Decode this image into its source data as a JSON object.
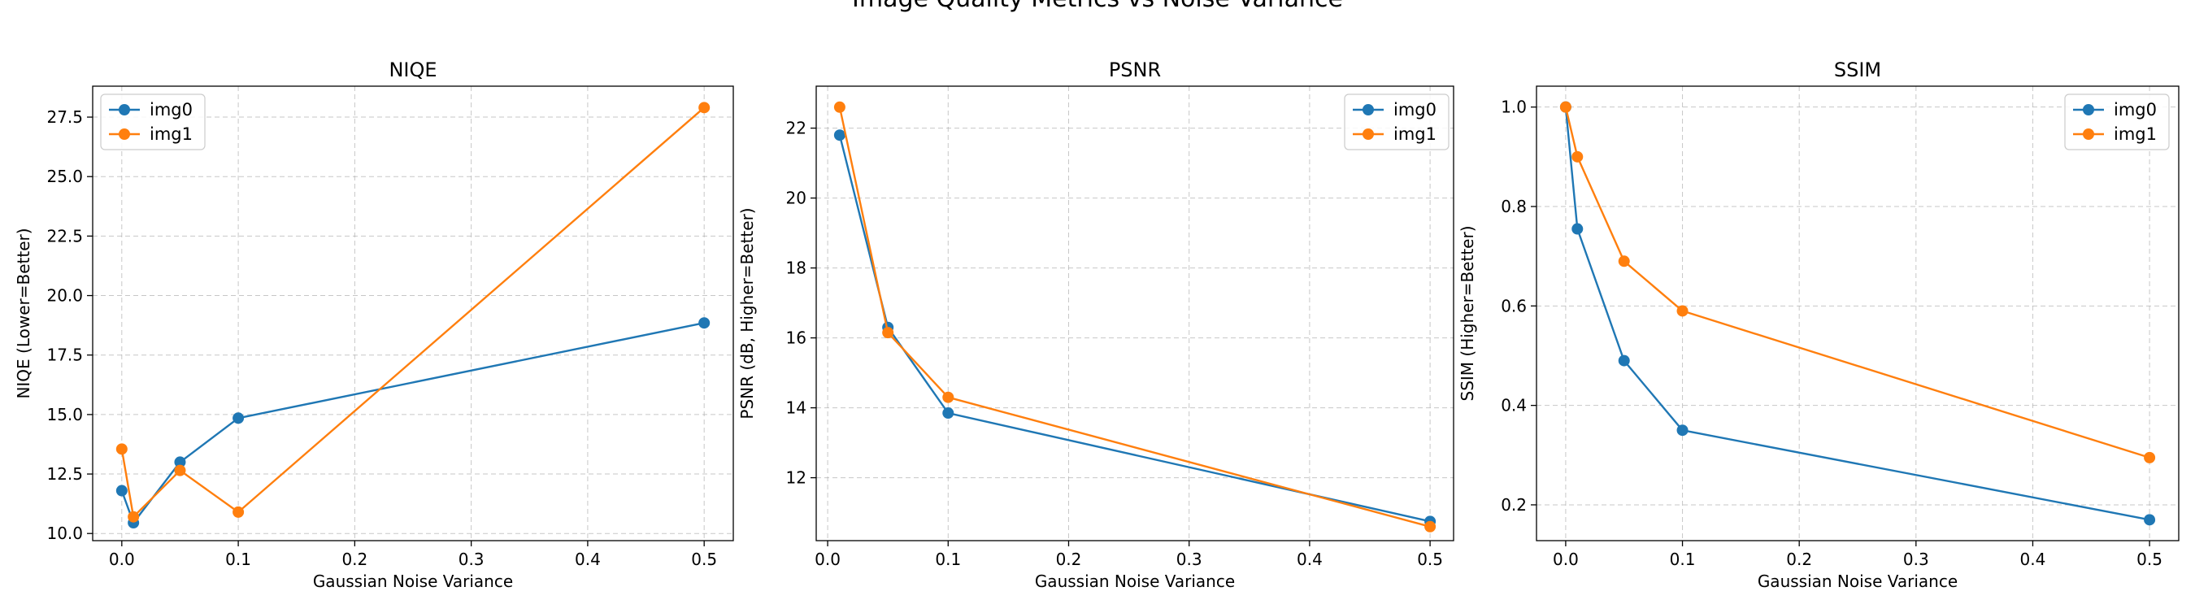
{
  "suptitle": "Image Quality Metrics vs Noise Variance",
  "colors": {
    "img0": "#1f77b4",
    "img1": "#ff7f0e"
  },
  "chart_data": [
    {
      "type": "line",
      "title": "NIQE",
      "xlabel": "Gaussian Noise Variance",
      "ylabel": "NIQE (Lower=Better)",
      "xlim": [
        -0.025,
        0.525
      ],
      "ylim": [
        9.7,
        28.8
      ],
      "xticks": [
        0.0,
        0.1,
        0.2,
        0.3,
        0.4,
        0.5
      ],
      "xtick_labels": [
        "0.0",
        "0.1",
        "0.2",
        "0.3",
        "0.4",
        "0.5"
      ],
      "yticks": [
        10.0,
        12.5,
        15.0,
        17.5,
        20.0,
        22.5,
        25.0,
        27.5
      ],
      "ytick_labels": [
        "10.0",
        "12.5",
        "15.0",
        "17.5",
        "20.0",
        "22.5",
        "25.0",
        "27.5"
      ],
      "grid": true,
      "legend": "upper-left",
      "series": [
        {
          "name": "img0",
          "x": [
            0.0,
            0.01,
            0.05,
            0.1,
            0.5
          ],
          "y": [
            11.8,
            10.45,
            13.0,
            14.85,
            18.85
          ]
        },
        {
          "name": "img1",
          "x": [
            0.0,
            0.01,
            0.05,
            0.1,
            0.5
          ],
          "y": [
            13.55,
            10.7,
            12.65,
            10.9,
            27.9
          ]
        }
      ]
    },
    {
      "type": "line",
      "title": "PSNR",
      "xlabel": "Gaussian Noise Variance",
      "ylabel": "PSNR (dB, Higher=Better)",
      "xlim": [
        -0.0095,
        0.5195
      ],
      "ylim": [
        10.2,
        23.2
      ],
      "xticks": [
        0.0,
        0.1,
        0.2,
        0.3,
        0.4,
        0.5
      ],
      "xtick_labels": [
        "0.0",
        "0.1",
        "0.2",
        "0.3",
        "0.4",
        "0.5"
      ],
      "yticks": [
        12,
        14,
        16,
        18,
        20,
        22
      ],
      "ytick_labels": [
        "12",
        "14",
        "16",
        "18",
        "20",
        "22"
      ],
      "grid": true,
      "legend": "upper-right",
      "series": [
        {
          "name": "img0",
          "x": [
            0.01,
            0.05,
            0.1,
            0.5
          ],
          "y": [
            21.8,
            16.3,
            13.85,
            10.75
          ]
        },
        {
          "name": "img1",
          "x": [
            0.01,
            0.05,
            0.1,
            0.5
          ],
          "y": [
            22.6,
            16.15,
            14.3,
            10.6
          ]
        }
      ]
    },
    {
      "type": "line",
      "title": "SSIM",
      "xlabel": "Gaussian Noise Variance",
      "ylabel": "SSIM (Higher=Better)",
      "xlim": [
        -0.025,
        0.525
      ],
      "ylim": [
        0.128,
        1.042
      ],
      "xticks": [
        0.0,
        0.1,
        0.2,
        0.3,
        0.4,
        0.5
      ],
      "xtick_labels": [
        "0.0",
        "0.1",
        "0.2",
        "0.3",
        "0.4",
        "0.5"
      ],
      "yticks": [
        0.2,
        0.4,
        0.6,
        0.8,
        1.0
      ],
      "ytick_labels": [
        "0.2",
        "0.4",
        "0.6",
        "0.8",
        "1.0"
      ],
      "grid": true,
      "legend": "upper-right",
      "series": [
        {
          "name": "img0",
          "x": [
            0.0,
            0.01,
            0.05,
            0.1,
            0.5
          ],
          "y": [
            1.0,
            0.755,
            0.49,
            0.35,
            0.17
          ]
        },
        {
          "name": "img1",
          "x": [
            0.0,
            0.01,
            0.05,
            0.1,
            0.5
          ],
          "y": [
            1.0,
            0.9,
            0.69,
            0.59,
            0.295
          ]
        }
      ]
    }
  ]
}
